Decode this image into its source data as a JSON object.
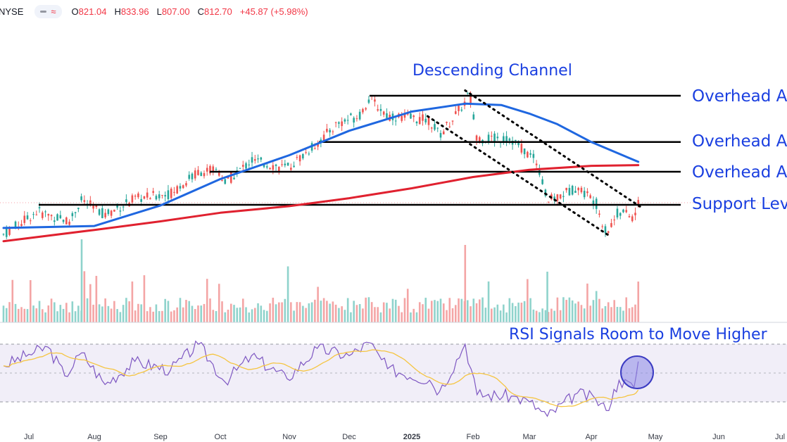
{
  "header": {
    "exchange": "NYSE",
    "open_label": "O",
    "open": "821.04",
    "high_label": "H",
    "high": "833.96",
    "low_label": "L",
    "low": "807.00",
    "close_label": "C",
    "close": "812.70",
    "change": "+45.87 (+5.98%)"
  },
  "annotations": {
    "channel_title": "Descending Channel",
    "resistance_1": "Overhead Area of Resistance",
    "resistance_2": "Overhead Area of Resistance",
    "resistance_3": "Overhead Area of Resistance",
    "support": "Support Level",
    "rsi_title": "RSI Signals Room to Move Higher"
  },
  "colors": {
    "up": "#26a69a",
    "down": "#ef5350",
    "ma50": "#1f67e0",
    "ma200": "#e0212f",
    "rsi_line": "#7e57c2",
    "rsi_ma": "#f5c542",
    "annotation_text": "#1a3fe0"
  },
  "chart_data": {
    "type": "candlestick",
    "y_range": [
      400,
      900
    ],
    "levels": {
      "resistance_high": 880,
      "resistance_mid": 810,
      "resistance_low": 765,
      "support": 715
    },
    "x_axis_labels": [
      "Jul",
      "Aug",
      "Sep",
      "Oct",
      "Nov",
      "Dec",
      "2025",
      "Feb",
      "Mar",
      "Apr",
      "May",
      "Jun",
      "Jul"
    ],
    "ma50": [
      {
        "date": "2024-06-19",
        "value": 680
      },
      {
        "date": "2024-08-01",
        "value": 683
      },
      {
        "date": "2024-09-01",
        "value": 714
      },
      {
        "date": "2024-10-01",
        "value": 754
      },
      {
        "date": "2024-11-01",
        "value": 790
      },
      {
        "date": "2024-12-01",
        "value": 827
      },
      {
        "date": "2025-01-01",
        "value": 856
      },
      {
        "date": "2025-01-28",
        "value": 868
      },
      {
        "date": "2025-02-15",
        "value": 866
      },
      {
        "date": "2025-03-01",
        "value": 853
      },
      {
        "date": "2025-03-15",
        "value": 837
      },
      {
        "date": "2025-04-01",
        "value": 810
      },
      {
        "date": "2025-04-23",
        "value": 780
      }
    ],
    "ma200": [
      {
        "date": "2024-06-19",
        "value": 660
      },
      {
        "date": "2024-08-01",
        "value": 677
      },
      {
        "date": "2024-09-01",
        "value": 690
      },
      {
        "date": "2024-10-01",
        "value": 703
      },
      {
        "date": "2024-11-01",
        "value": 713
      },
      {
        "date": "2024-12-01",
        "value": 725
      },
      {
        "date": "2025-01-01",
        "value": 740
      },
      {
        "date": "2025-02-01",
        "value": 757
      },
      {
        "date": "2025-03-01",
        "value": 768
      },
      {
        "date": "2025-04-01",
        "value": 774
      },
      {
        "date": "2025-04-23",
        "value": 775
      }
    ],
    "channel": {
      "upper": [
        {
          "date": "2025-01-28",
          "value": 888
        },
        {
          "date": "2025-04-24",
          "value": 712
        }
      ],
      "lower": [
        {
          "date": "2025-01-09",
          "value": 849
        },
        {
          "date": "2025-04-10",
          "value": 667
        }
      ]
    },
    "rsi": {
      "range": [
        0,
        100
      ],
      "upper_band": 70,
      "lower_band": 30,
      "latest": 58
    }
  }
}
